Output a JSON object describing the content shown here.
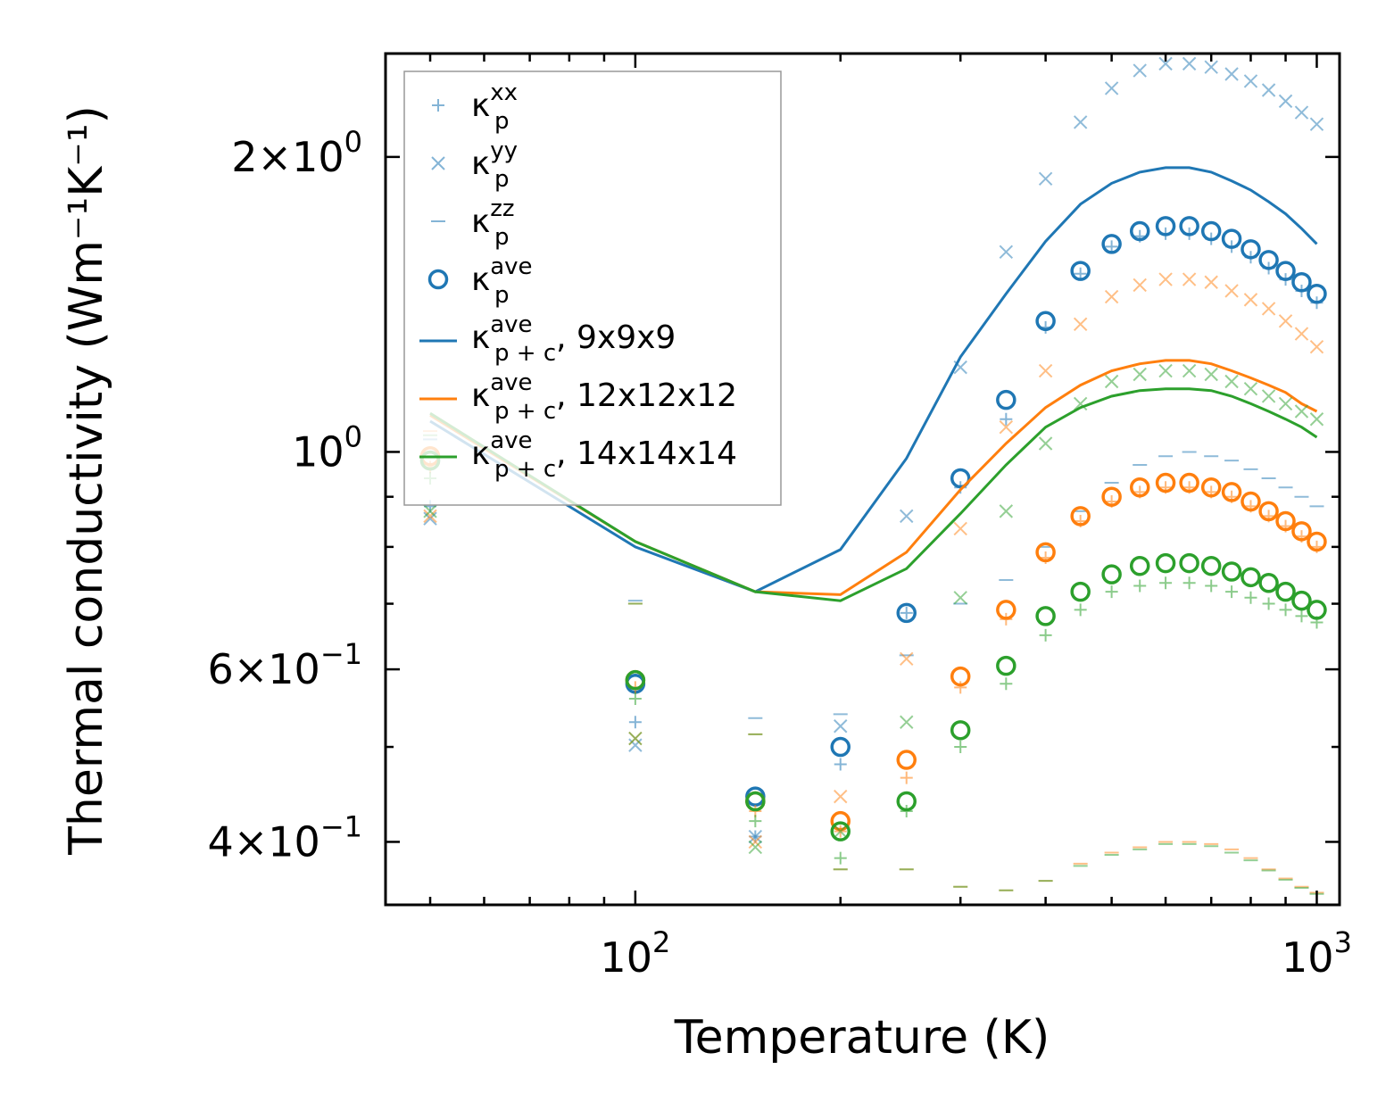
{
  "chart_data": {
    "type": "scatter",
    "xscale": "log",
    "yscale": "log",
    "xlabel": "Temperature (K)",
    "ylabel": "Thermal conductivity (Wm⁻¹K⁻¹)",
    "xlim": [
      43,
      1080
    ],
    "ylim": [
      0.345,
      2.55
    ],
    "x_ticks": [
      {
        "value": 100,
        "base": "10",
        "exp": "2"
      },
      {
        "value": 1000,
        "base": "10",
        "exp": "3"
      }
    ],
    "y_ticks": [
      {
        "value": 0.4,
        "mant": "4",
        "base": "10",
        "exp": "−1"
      },
      {
        "value": 0.6,
        "mant": "6",
        "base": "10",
        "exp": "−1"
      },
      {
        "value": 1.0,
        "mant": "",
        "base": "10",
        "exp": "0"
      },
      {
        "value": 2.0,
        "mant": "2",
        "base": "10",
        "exp": "0"
      }
    ],
    "times_sign": "×",
    "x": [
      50,
      100,
      150,
      200,
      250,
      300,
      350,
      400,
      450,
      500,
      550,
      600,
      650,
      700,
      750,
      800,
      850,
      900,
      950,
      1000
    ],
    "groups": [
      {
        "name": "9x9x9",
        "color": "#1f77b4",
        "k_xx": [
          0.88,
          0.53,
          0.405,
          0.48,
          0.685,
          0.92,
          1.08,
          1.34,
          1.52,
          1.62,
          1.66,
          1.67,
          1.67,
          1.65,
          1.62,
          1.58,
          1.54,
          1.5,
          1.46,
          1.42
        ],
        "k_yy": [
          0.855,
          0.502,
          0.405,
          0.525,
          0.86,
          1.22,
          1.6,
          1.9,
          2.17,
          2.35,
          2.45,
          2.49,
          2.49,
          2.47,
          2.43,
          2.39,
          2.34,
          2.28,
          2.22,
          2.16
        ],
        "k_zz": [
          1.03,
          0.705,
          0.535,
          0.54,
          0.62,
          0.7,
          0.74,
          0.8,
          0.87,
          0.93,
          0.97,
          0.99,
          1.0,
          0.99,
          0.98,
          0.96,
          0.94,
          0.92,
          0.9,
          0.88
        ],
        "k_ave": [
          0.98,
          0.58,
          0.445,
          0.5,
          0.685,
          0.94,
          1.13,
          1.36,
          1.53,
          1.63,
          1.68,
          1.7,
          1.7,
          1.68,
          1.65,
          1.61,
          1.57,
          1.53,
          1.49,
          1.45
        ],
        "k_pc": [
          1.075,
          0.8,
          0.72,
          0.795,
          0.985,
          1.25,
          1.45,
          1.64,
          1.79,
          1.88,
          1.93,
          1.95,
          1.95,
          1.93,
          1.89,
          1.85,
          1.8,
          1.75,
          1.69,
          1.63
        ]
      },
      {
        "name": "12x12x12",
        "color": "#ff7f0e",
        "k_xx": [
          0.965,
          0.575,
          0.43,
          0.41,
          0.465,
          0.575,
          0.675,
          0.78,
          0.85,
          0.89,
          0.91,
          0.92,
          0.92,
          0.91,
          0.9,
          0.88,
          0.86,
          0.84,
          0.82,
          0.8
        ],
        "k_yy": [
          0.86,
          0.51,
          0.4,
          0.445,
          0.615,
          0.835,
          1.06,
          1.21,
          1.35,
          1.44,
          1.48,
          1.5,
          1.5,
          1.49,
          1.46,
          1.43,
          1.4,
          1.36,
          1.32,
          1.28
        ],
        "k_zz": [
          1.05,
          0.7,
          0.515,
          0.375,
          0.375,
          0.36,
          0.357,
          0.365,
          0.38,
          0.39,
          0.395,
          0.4,
          0.4,
          0.398,
          0.393,
          0.385,
          0.375,
          0.367,
          0.36,
          0.355
        ],
        "k_ave": [
          0.99,
          0.585,
          0.44,
          0.42,
          0.485,
          0.59,
          0.69,
          0.79,
          0.86,
          0.9,
          0.92,
          0.93,
          0.93,
          0.92,
          0.91,
          0.89,
          0.87,
          0.85,
          0.83,
          0.81
        ],
        "k_pc": [
          1.09,
          0.81,
          0.72,
          0.715,
          0.79,
          0.915,
          1.02,
          1.11,
          1.17,
          1.21,
          1.23,
          1.24,
          1.24,
          1.23,
          1.21,
          1.19,
          1.17,
          1.15,
          1.12,
          1.1
        ]
      },
      {
        "name": "14x14x14",
        "color": "#2ca02c",
        "k_xx": [
          0.94,
          0.56,
          0.42,
          0.385,
          0.43,
          0.5,
          0.58,
          0.65,
          0.69,
          0.72,
          0.73,
          0.735,
          0.735,
          0.73,
          0.72,
          0.71,
          0.7,
          0.69,
          0.68,
          0.67
        ],
        "k_yy": [
          0.87,
          0.51,
          0.395,
          0.41,
          0.53,
          0.71,
          0.87,
          1.02,
          1.12,
          1.18,
          1.2,
          1.21,
          1.21,
          1.2,
          1.18,
          1.16,
          1.14,
          1.12,
          1.1,
          1.08
        ],
        "k_zz": [
          1.04,
          0.7,
          0.515,
          0.375,
          0.375,
          0.36,
          0.357,
          0.365,
          0.378,
          0.388,
          0.393,
          0.398,
          0.398,
          0.396,
          0.39,
          0.383,
          0.374,
          0.366,
          0.359,
          0.354
        ],
        "k_ave": [
          0.98,
          0.585,
          0.44,
          0.41,
          0.44,
          0.52,
          0.605,
          0.68,
          0.72,
          0.75,
          0.765,
          0.77,
          0.77,
          0.765,
          0.755,
          0.745,
          0.735,
          0.72,
          0.705,
          0.69
        ],
        "k_pc": [
          1.095,
          0.81,
          0.72,
          0.705,
          0.76,
          0.865,
          0.97,
          1.06,
          1.11,
          1.14,
          1.155,
          1.16,
          1.16,
          1.155,
          1.14,
          1.12,
          1.1,
          1.08,
          1.06,
          1.035
        ]
      }
    ],
    "legend": {
      "position": "upper-left",
      "entries": [
        {
          "kind": "plus",
          "sym": "κ",
          "sub": "p",
          "sup": "xx",
          "tail": ""
        },
        {
          "kind": "cross",
          "sym": "κ",
          "sub": "p",
          "sup": "yy",
          "tail": ""
        },
        {
          "kind": "dash",
          "sym": "κ",
          "sub": "p",
          "sup": "zz",
          "tail": ""
        },
        {
          "kind": "circle",
          "sym": "κ",
          "sub": "p",
          "sup": "ave",
          "tail": ""
        },
        {
          "kind": "line",
          "color": "#1f77b4",
          "sym": "κ",
          "sub": "p + c",
          "sup": "ave",
          "tail": ", 9x9x9"
        },
        {
          "kind": "line",
          "color": "#ff7f0e",
          "sym": "κ",
          "sub": "p + c",
          "sup": "ave",
          "tail": ", 12x12x12"
        },
        {
          "kind": "line",
          "color": "#2ca02c",
          "sym": "κ",
          "sub": "p + c",
          "sup": "ave",
          "tail": ", 14x14x14"
        }
      ]
    }
  }
}
